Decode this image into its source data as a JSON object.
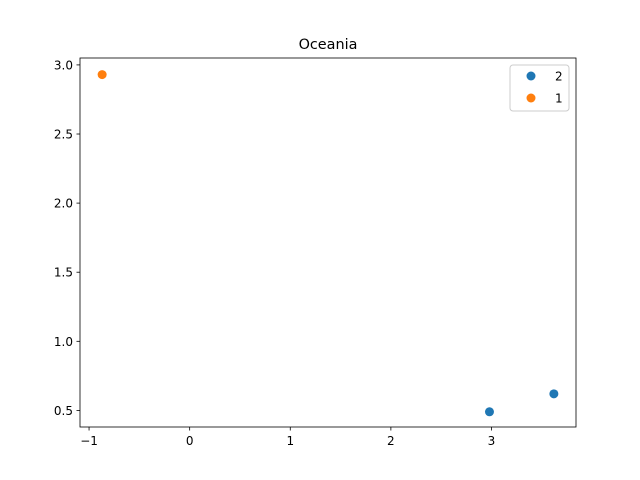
{
  "chart_data": {
    "type": "scatter",
    "title": "Oceania",
    "xlabel": "",
    "ylabel": "",
    "xlim": [
      -1.09,
      3.84
    ],
    "ylim": [
      0.38,
      3.05
    ],
    "xticks": [
      -1,
      0,
      1,
      2,
      3
    ],
    "xtick_labels": [
      "−1",
      "0",
      "1",
      "2",
      "3"
    ],
    "yticks": [
      0.5,
      1.0,
      1.5,
      2.0,
      2.5,
      3.0
    ],
    "ytick_labels": [
      "0.5",
      "1.0",
      "1.5",
      "2.0",
      "2.5",
      "3.0"
    ],
    "grid": false,
    "legend_position": "top-right",
    "series": [
      {
        "name": "2",
        "color": "#1f77b4",
        "points": [
          [
            2.98,
            0.49
          ],
          [
            3.62,
            0.62
          ]
        ]
      },
      {
        "name": "1",
        "color": "#ff7f0e",
        "points": [
          [
            -0.87,
            2.93
          ]
        ]
      }
    ]
  }
}
